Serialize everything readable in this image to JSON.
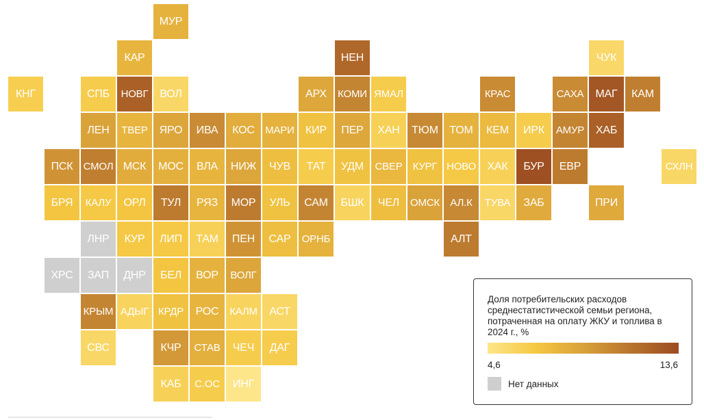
{
  "legend": {
    "title": "Доля потребительских расходов среднестатистической семьи региона, потраченная на оплату ЖКУ и топлива в 2024 г., %",
    "min_label": "4,6",
    "max_label": "13,6",
    "min": 4.6,
    "max": 13.6,
    "no_data_label": "Нет данных",
    "no_data_color": "#cfcfcf"
  },
  "regions": [
    {
      "label": "МУР",
      "row": 0,
      "col": 4,
      "value": 8.0
    },
    {
      "label": "КАР",
      "row": 1,
      "col": 3,
      "value": 7.8
    },
    {
      "label": "НЕН",
      "row": 1,
      "col": 9,
      "value": 12.0
    },
    {
      "label": "ЧУК",
      "row": 1,
      "col": 16,
      "value": 5.5
    },
    {
      "label": "КНГ",
      "row": 2,
      "col": 0,
      "value": 6.2
    },
    {
      "label": "СПБ",
      "row": 2,
      "col": 2,
      "value": 6.3
    },
    {
      "label": "НОВГ",
      "row": 2,
      "col": 3,
      "value": 12.5
    },
    {
      "label": "ВОЛ",
      "row": 2,
      "col": 4,
      "value": 5.6
    },
    {
      "label": "АРХ",
      "row": 2,
      "col": 8,
      "value": 8.7
    },
    {
      "label": "КОМИ",
      "row": 2,
      "col": 9,
      "value": 10.5
    },
    {
      "label": "ЯМАЛ",
      "row": 2,
      "col": 10,
      "value": 6.3
    },
    {
      "label": "КРАС",
      "row": 2,
      "col": 13,
      "value": 10.2
    },
    {
      "label": "САХА",
      "row": 2,
      "col": 15,
      "value": 10.2
    },
    {
      "label": "МАГ",
      "row": 2,
      "col": 16,
      "value": 13.0
    },
    {
      "label": "КАМ",
      "row": 2,
      "col": 17,
      "value": 10.8
    },
    {
      "label": "ЛЕН",
      "row": 3,
      "col": 2,
      "value": 9.0
    },
    {
      "label": "ТВЕР",
      "row": 3,
      "col": 3,
      "value": 7.8
    },
    {
      "label": "ЯРО",
      "row": 3,
      "col": 4,
      "value": 8.8
    },
    {
      "label": "ИВА",
      "row": 3,
      "col": 5,
      "value": 10.2
    },
    {
      "label": "КОС",
      "row": 3,
      "col": 6,
      "value": 8.3
    },
    {
      "label": "МАРИ",
      "row": 3,
      "col": 7,
      "value": 8.0
    },
    {
      "label": "КИР",
      "row": 3,
      "col": 8,
      "value": 7.0
    },
    {
      "label": "ПЕР",
      "row": 3,
      "col": 9,
      "value": 8.7
    },
    {
      "label": "ХАН",
      "row": 3,
      "col": 10,
      "value": 6.0
    },
    {
      "label": "ТЮМ",
      "row": 3,
      "col": 11,
      "value": 10.3
    },
    {
      "label": "ТОМ",
      "row": 3,
      "col": 12,
      "value": 8.0
    },
    {
      "label": "КЕМ",
      "row": 3,
      "col": 13,
      "value": 7.5
    },
    {
      "label": "ИРК",
      "row": 3,
      "col": 14,
      "value": 6.3
    },
    {
      "label": "АМУР",
      "row": 3,
      "col": 15,
      "value": 10.5
    },
    {
      "label": "ХАБ",
      "row": 3,
      "col": 16,
      "value": 12.5
    },
    {
      "label": "ПСК",
      "row": 4,
      "col": 1,
      "value": 9.8
    },
    {
      "label": "СМОЛ",
      "row": 4,
      "col": 2,
      "value": 10.8
    },
    {
      "label": "МСК",
      "row": 4,
      "col": 3,
      "value": 8.4
    },
    {
      "label": "МОС",
      "row": 4,
      "col": 4,
      "value": 8.1
    },
    {
      "label": "ВЛА",
      "row": 4,
      "col": 5,
      "value": 7.8
    },
    {
      "label": "НИЖ",
      "row": 4,
      "col": 6,
      "value": 8.8
    },
    {
      "label": "ЧУВ",
      "row": 4,
      "col": 7,
      "value": 7.2
    },
    {
      "label": "ТАТ",
      "row": 4,
      "col": 8,
      "value": 6.3
    },
    {
      "label": "УДМ",
      "row": 4,
      "col": 9,
      "value": 7.0
    },
    {
      "label": "СВЕР",
      "row": 4,
      "col": 10,
      "value": 7.6
    },
    {
      "label": "КУРГ",
      "row": 4,
      "col": 11,
      "value": 7.0
    },
    {
      "label": "НОВО",
      "row": 4,
      "col": 12,
      "value": 6.5
    },
    {
      "label": "ХАК",
      "row": 4,
      "col": 13,
      "value": 6.0
    },
    {
      "label": "БУР",
      "row": 4,
      "col": 14,
      "value": 13.4
    },
    {
      "label": "ЕВР",
      "row": 4,
      "col": 15,
      "value": 11.0
    },
    {
      "label": "СХЛН",
      "row": 4,
      "col": 18,
      "value": 5.6
    },
    {
      "label": "БРЯ",
      "row": 5,
      "col": 1,
      "value": 6.8
    },
    {
      "label": "КАЛУ",
      "row": 5,
      "col": 2,
      "value": 6.5
    },
    {
      "label": "ОРЛ",
      "row": 5,
      "col": 3,
      "value": 6.8
    },
    {
      "label": "ТУЛ",
      "row": 5,
      "col": 4,
      "value": 11.0
    },
    {
      "label": "РЯЗ",
      "row": 5,
      "col": 5,
      "value": 7.8
    },
    {
      "label": "МОР",
      "row": 5,
      "col": 6,
      "value": 11.0
    },
    {
      "label": "УЛЬ",
      "row": 5,
      "col": 7,
      "value": 7.0
    },
    {
      "label": "САМ",
      "row": 5,
      "col": 8,
      "value": 10.5
    },
    {
      "label": "БШК",
      "row": 5,
      "col": 9,
      "value": 5.8
    },
    {
      "label": "ЧЕЛ",
      "row": 5,
      "col": 10,
      "value": 7.2
    },
    {
      "label": "ОМСК",
      "row": 5,
      "col": 11,
      "value": 9.0
    },
    {
      "label": "АЛ.К",
      "row": 5,
      "col": 12,
      "value": 10.3
    },
    {
      "label": "ТУВА",
      "row": 5,
      "col": 13,
      "value": 5.6
    },
    {
      "label": "ЗАБ",
      "row": 5,
      "col": 14,
      "value": 8.5
    },
    {
      "label": "ПРИ",
      "row": 5,
      "col": 16,
      "value": 8.6
    },
    {
      "label": "ЛНР",
      "row": 6,
      "col": 2,
      "value": null
    },
    {
      "label": "КУР",
      "row": 6,
      "col": 3,
      "value": 6.5
    },
    {
      "label": "ЛИП",
      "row": 6,
      "col": 4,
      "value": 6.5
    },
    {
      "label": "ТАМ",
      "row": 6,
      "col": 5,
      "value": 6.0
    },
    {
      "label": "ПЕН",
      "row": 6,
      "col": 6,
      "value": 9.8
    },
    {
      "label": "САР",
      "row": 6,
      "col": 7,
      "value": 7.2
    },
    {
      "label": "ОРНБ",
      "row": 6,
      "col": 8,
      "value": 8.0
    },
    {
      "label": "АЛТ",
      "row": 6,
      "col": 12,
      "value": 11.0
    },
    {
      "label": "ХРС",
      "row": 7,
      "col": 1,
      "value": null
    },
    {
      "label": "ЗАП",
      "row": 7,
      "col": 2,
      "value": null
    },
    {
      "label": "ДНР",
      "row": 7,
      "col": 3,
      "value": null
    },
    {
      "label": "БЕЛ",
      "row": 7,
      "col": 4,
      "value": 6.8
    },
    {
      "label": "ВОР",
      "row": 7,
      "col": 5,
      "value": 8.0
    },
    {
      "label": "ВОЛГ",
      "row": 7,
      "col": 6,
      "value": 8.8
    },
    {
      "label": "КРЫМ",
      "row": 8,
      "col": 2,
      "value": 10.5
    },
    {
      "label": "АДЫГ",
      "row": 8,
      "col": 3,
      "value": 5.8
    },
    {
      "label": "КРДР",
      "row": 8,
      "col": 4,
      "value": 7.0
    },
    {
      "label": "РОС",
      "row": 8,
      "col": 5,
      "value": 7.8
    },
    {
      "label": "КАЛМ",
      "row": 8,
      "col": 6,
      "value": 5.8
    },
    {
      "label": "АСТ",
      "row": 8,
      "col": 7,
      "value": 5.6
    },
    {
      "label": "СВС",
      "row": 9,
      "col": 2,
      "value": 5.6
    },
    {
      "label": "КЧР",
      "row": 9,
      "col": 4,
      "value": 9.5
    },
    {
      "label": "СТАВ",
      "row": 9,
      "col": 5,
      "value": 8.2
    },
    {
      "label": "ЧЕЧ",
      "row": 9,
      "col": 6,
      "value": 6.3
    },
    {
      "label": "ДАГ",
      "row": 9,
      "col": 7,
      "value": 6.3
    },
    {
      "label": "КАБ",
      "row": 10,
      "col": 4,
      "value": 6.0
    },
    {
      "label": "С.ОС",
      "row": 10,
      "col": 5,
      "value": 6.3
    },
    {
      "label": "ИНГ",
      "row": 10,
      "col": 6,
      "value": 4.6
    }
  ]
}
